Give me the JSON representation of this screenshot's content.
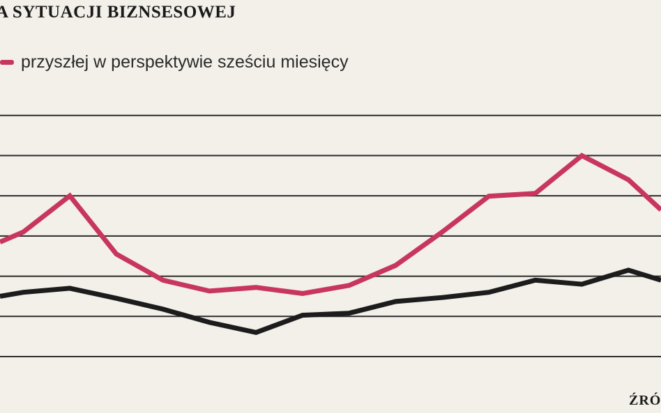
{
  "title": "A SYTUACJI BIZNSESOWEJ",
  "legend": {
    "label": "przyszłej w perspektywie sześciu miesięcy"
  },
  "source": "ŹRÓ",
  "colors": {
    "background": "#f2f0e9",
    "grid": "#2b2b2b",
    "future_series": "#c8365f",
    "current_series": "#1c1c1c"
  },
  "chart_data": {
    "type": "line",
    "title": "A SYTUACJI BIZNSESOWEJ",
    "xlabel": "",
    "ylabel": "",
    "grid": true,
    "gridlines": 7,
    "ylim": [
      0,
      7
    ],
    "xlim": [
      0,
      14.2
    ],
    "legend_position": "top-left",
    "series": [
      {
        "name": "przyszłej w perspektywie sześciu miesięcy",
        "color": "#c8365f",
        "x": [
          0,
          0.5,
          1.5,
          2.5,
          3.5,
          4.5,
          5.5,
          6.5,
          7.5,
          8.5,
          9.5,
          10.5,
          11.5,
          12.5,
          13.5,
          14.2
        ],
        "y": [
          2.85,
          3.1,
          4.0,
          2.55,
          1.9,
          1.63,
          1.72,
          1.57,
          1.77,
          2.27,
          3.1,
          3.99,
          4.06,
          5.0,
          4.4,
          3.65
        ]
      },
      {
        "name": "",
        "color": "#1c1c1c",
        "x": [
          0,
          0.5,
          1.5,
          2.5,
          3.5,
          4.5,
          5.5,
          6.5,
          7.5,
          8.5,
          9.5,
          10.5,
          11.5,
          12.5,
          13.5,
          14.2
        ],
        "y": [
          1.5,
          1.6,
          1.7,
          1.45,
          1.18,
          0.85,
          0.6,
          1.03,
          1.08,
          1.37,
          1.47,
          1.6,
          1.9,
          1.8,
          2.15,
          1.9
        ]
      }
    ]
  }
}
